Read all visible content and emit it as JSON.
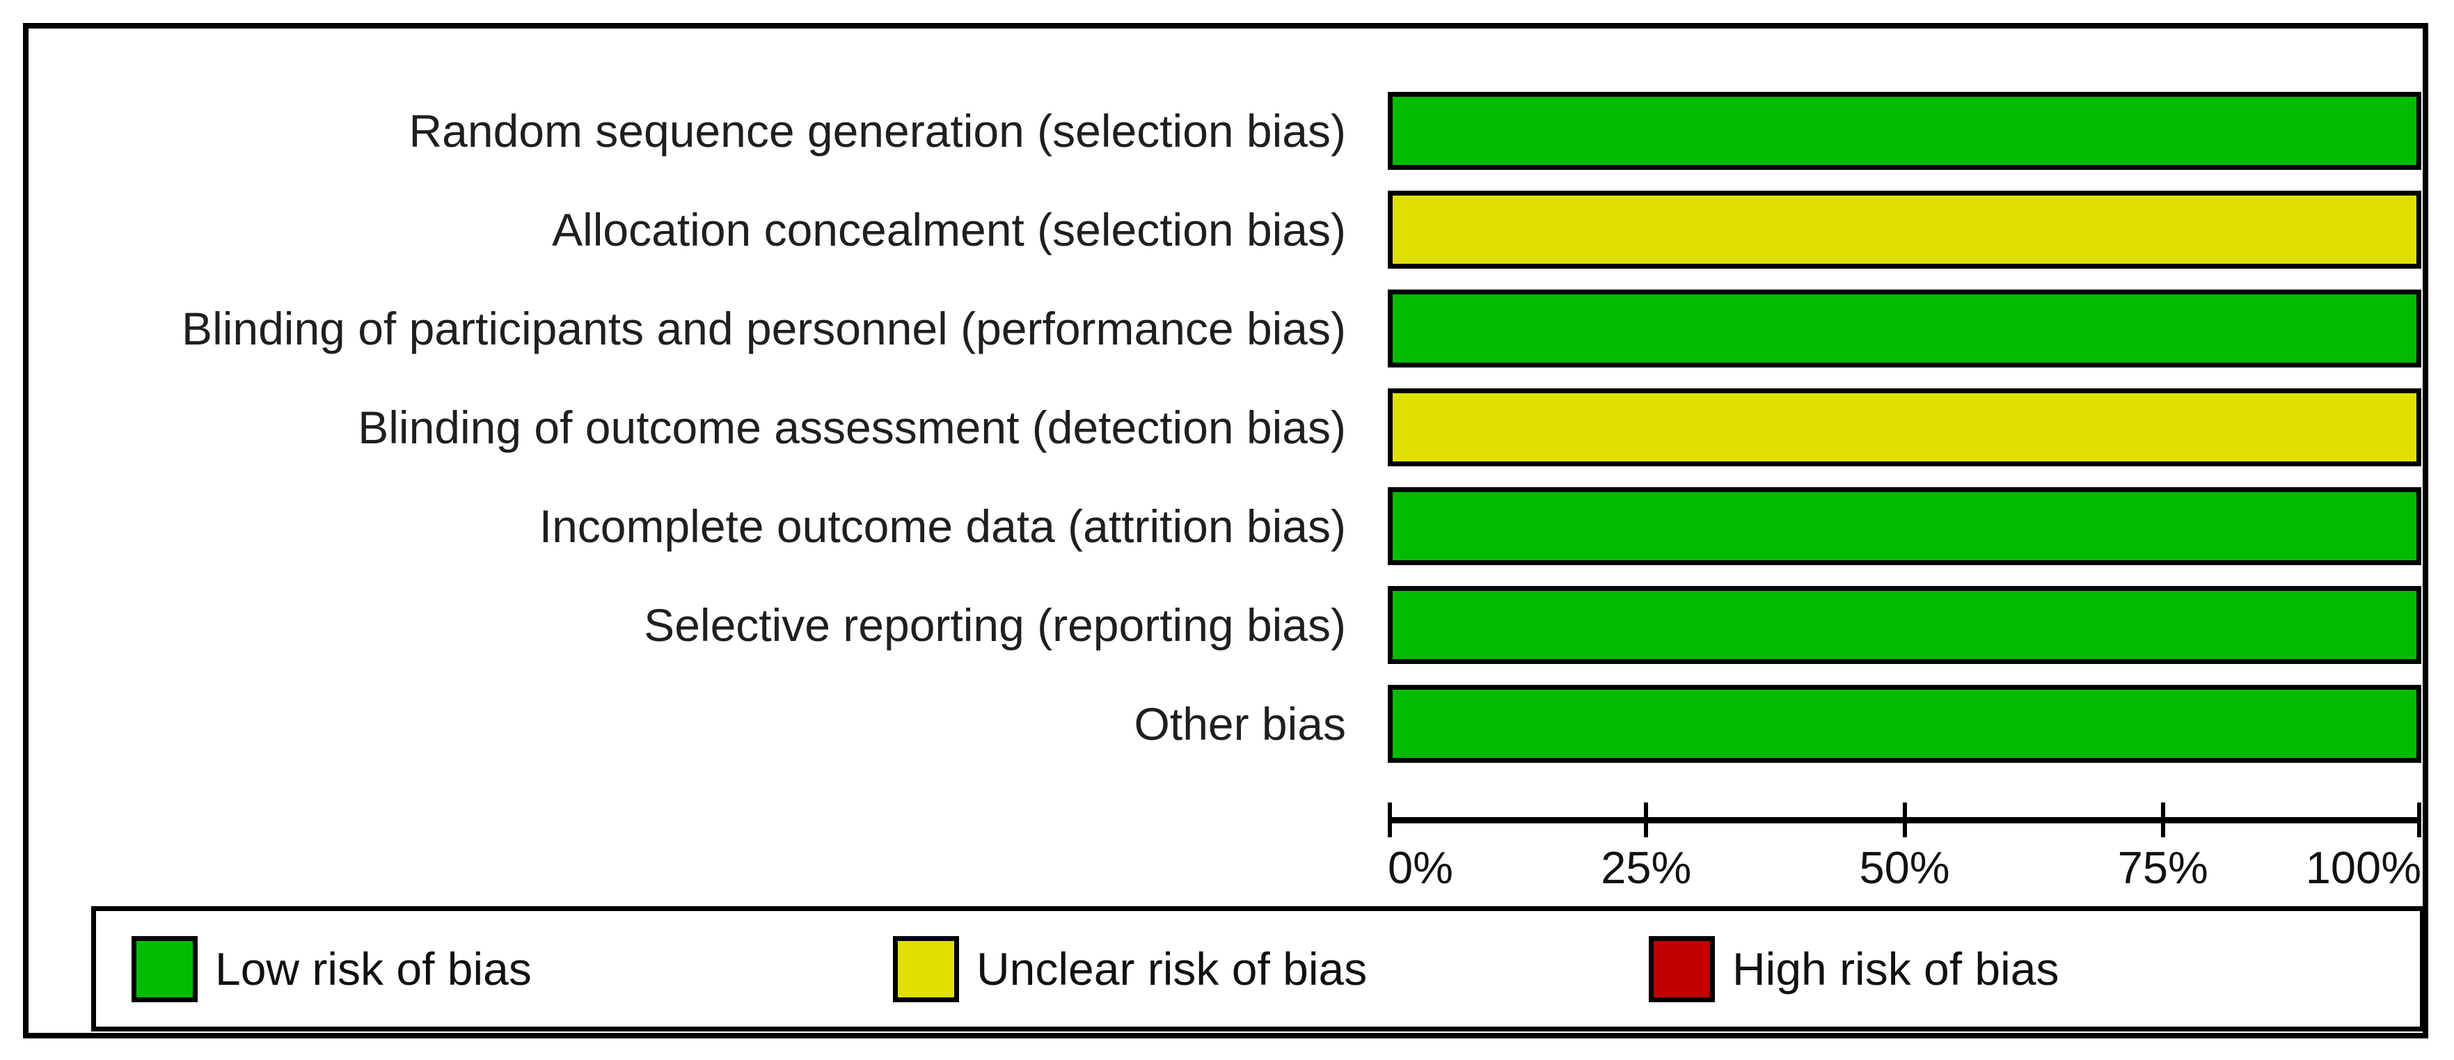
{
  "chart_data": {
    "type": "bar",
    "orientation": "horizontal",
    "categories": [
      "Random sequence generation (selection bias)",
      "Allocation concealment (selection bias)",
      "Blinding of participants and personnel (performance bias)",
      "Blinding of outcome assessment (detection bias)",
      "Incomplete outcome data (attrition bias)",
      "Selective reporting (reporting bias)",
      "Other bias"
    ],
    "series": [
      {
        "name": "Low risk of bias",
        "color": "#00BB00",
        "values": [
          100,
          0,
          100,
          0,
          100,
          100,
          100
        ]
      },
      {
        "name": "Unclear risk of bias",
        "color": "#E0E000",
        "values": [
          0,
          100,
          0,
          100,
          0,
          0,
          0
        ]
      },
      {
        "name": "High risk of bias",
        "color": "#C00000",
        "values": [
          0,
          0,
          0,
          0,
          0,
          0,
          0
        ]
      }
    ],
    "x_axis": {
      "tick_labels": [
        "0%",
        "25%",
        "50%",
        "75%",
        "100%"
      ],
      "range": [
        0,
        100
      ],
      "unit": "percent"
    },
    "legend_position": "bottom",
    "grid": false
  },
  "rows": [
    {
      "label": "Random sequence generation (selection bias)",
      "risk": "low",
      "color": "#00BB00",
      "value_percent": 100
    },
    {
      "label": "Allocation concealment (selection bias)",
      "risk": "unclear",
      "color": "#E0E000",
      "value_percent": 100
    },
    {
      "label": "Blinding of participants and personnel (performance bias)",
      "risk": "low",
      "color": "#00BB00",
      "value_percent": 100
    },
    {
      "label": "Blinding of outcome assessment (detection bias)",
      "risk": "unclear",
      "color": "#E0E000",
      "value_percent": 100
    },
    {
      "label": "Incomplete outcome data (attrition bias)",
      "risk": "low",
      "color": "#00BB00",
      "value_percent": 100
    },
    {
      "label": "Selective reporting (reporting bias)",
      "risk": "low",
      "color": "#00BB00",
      "value_percent": 100
    },
    {
      "label": "Other bias",
      "risk": "low",
      "color": "#00BB00",
      "value_percent": 100
    }
  ],
  "axis": {
    "ticks": [
      "0%",
      "25%",
      "50%",
      "75%",
      "100%"
    ]
  },
  "legend": {
    "entries": [
      {
        "label": "Low risk of bias",
        "color": "#00BB00"
      },
      {
        "label": "Unclear risk of bias",
        "color": "#E0E000"
      },
      {
        "label": "High risk of bias",
        "color": "#C00000"
      }
    ]
  },
  "colors": {
    "low": "#00BB00",
    "unclear": "#E0E000",
    "high": "#C00000",
    "border": "#000000",
    "background": "#FFFFFF"
  }
}
